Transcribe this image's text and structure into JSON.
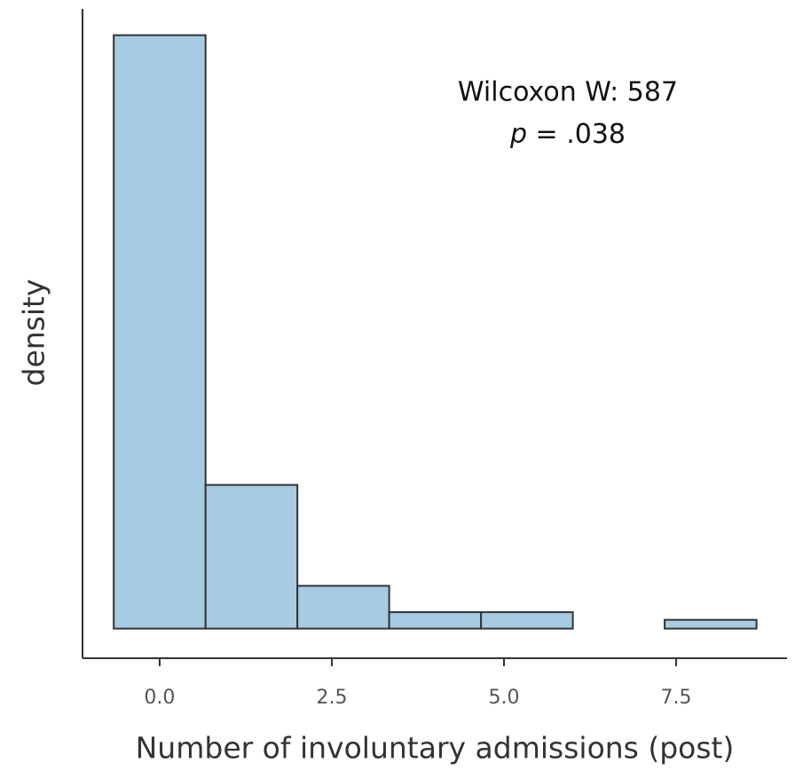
{
  "chart_data": {
    "type": "histogram",
    "x_label": "Number of involuntary admissions (post)",
    "y_label": "density",
    "bins": [
      -0.667,
      0.667,
      2,
      3.333,
      4.667,
      6,
      7.333,
      8.667
    ],
    "values": [
      0.541,
      0.131,
      0.039,
      0.015,
      0.015,
      0,
      0.008
    ],
    "color": "#a6cbe3",
    "edge_color": "#333333",
    "xlim": [
      -1.12,
      9.11
    ],
    "ylim": [
      -0.027,
      0.565
    ],
    "xticks": [
      {
        "value": 0,
        "label": "0.0"
      },
      2.5,
      {
        "value": 5,
        "label": "5.0"
      },
      7.5
    ],
    "annotation": {
      "line1": "Wilcoxon W: 587",
      "p_symbol": "p",
      "p_text": " = .038"
    }
  }
}
